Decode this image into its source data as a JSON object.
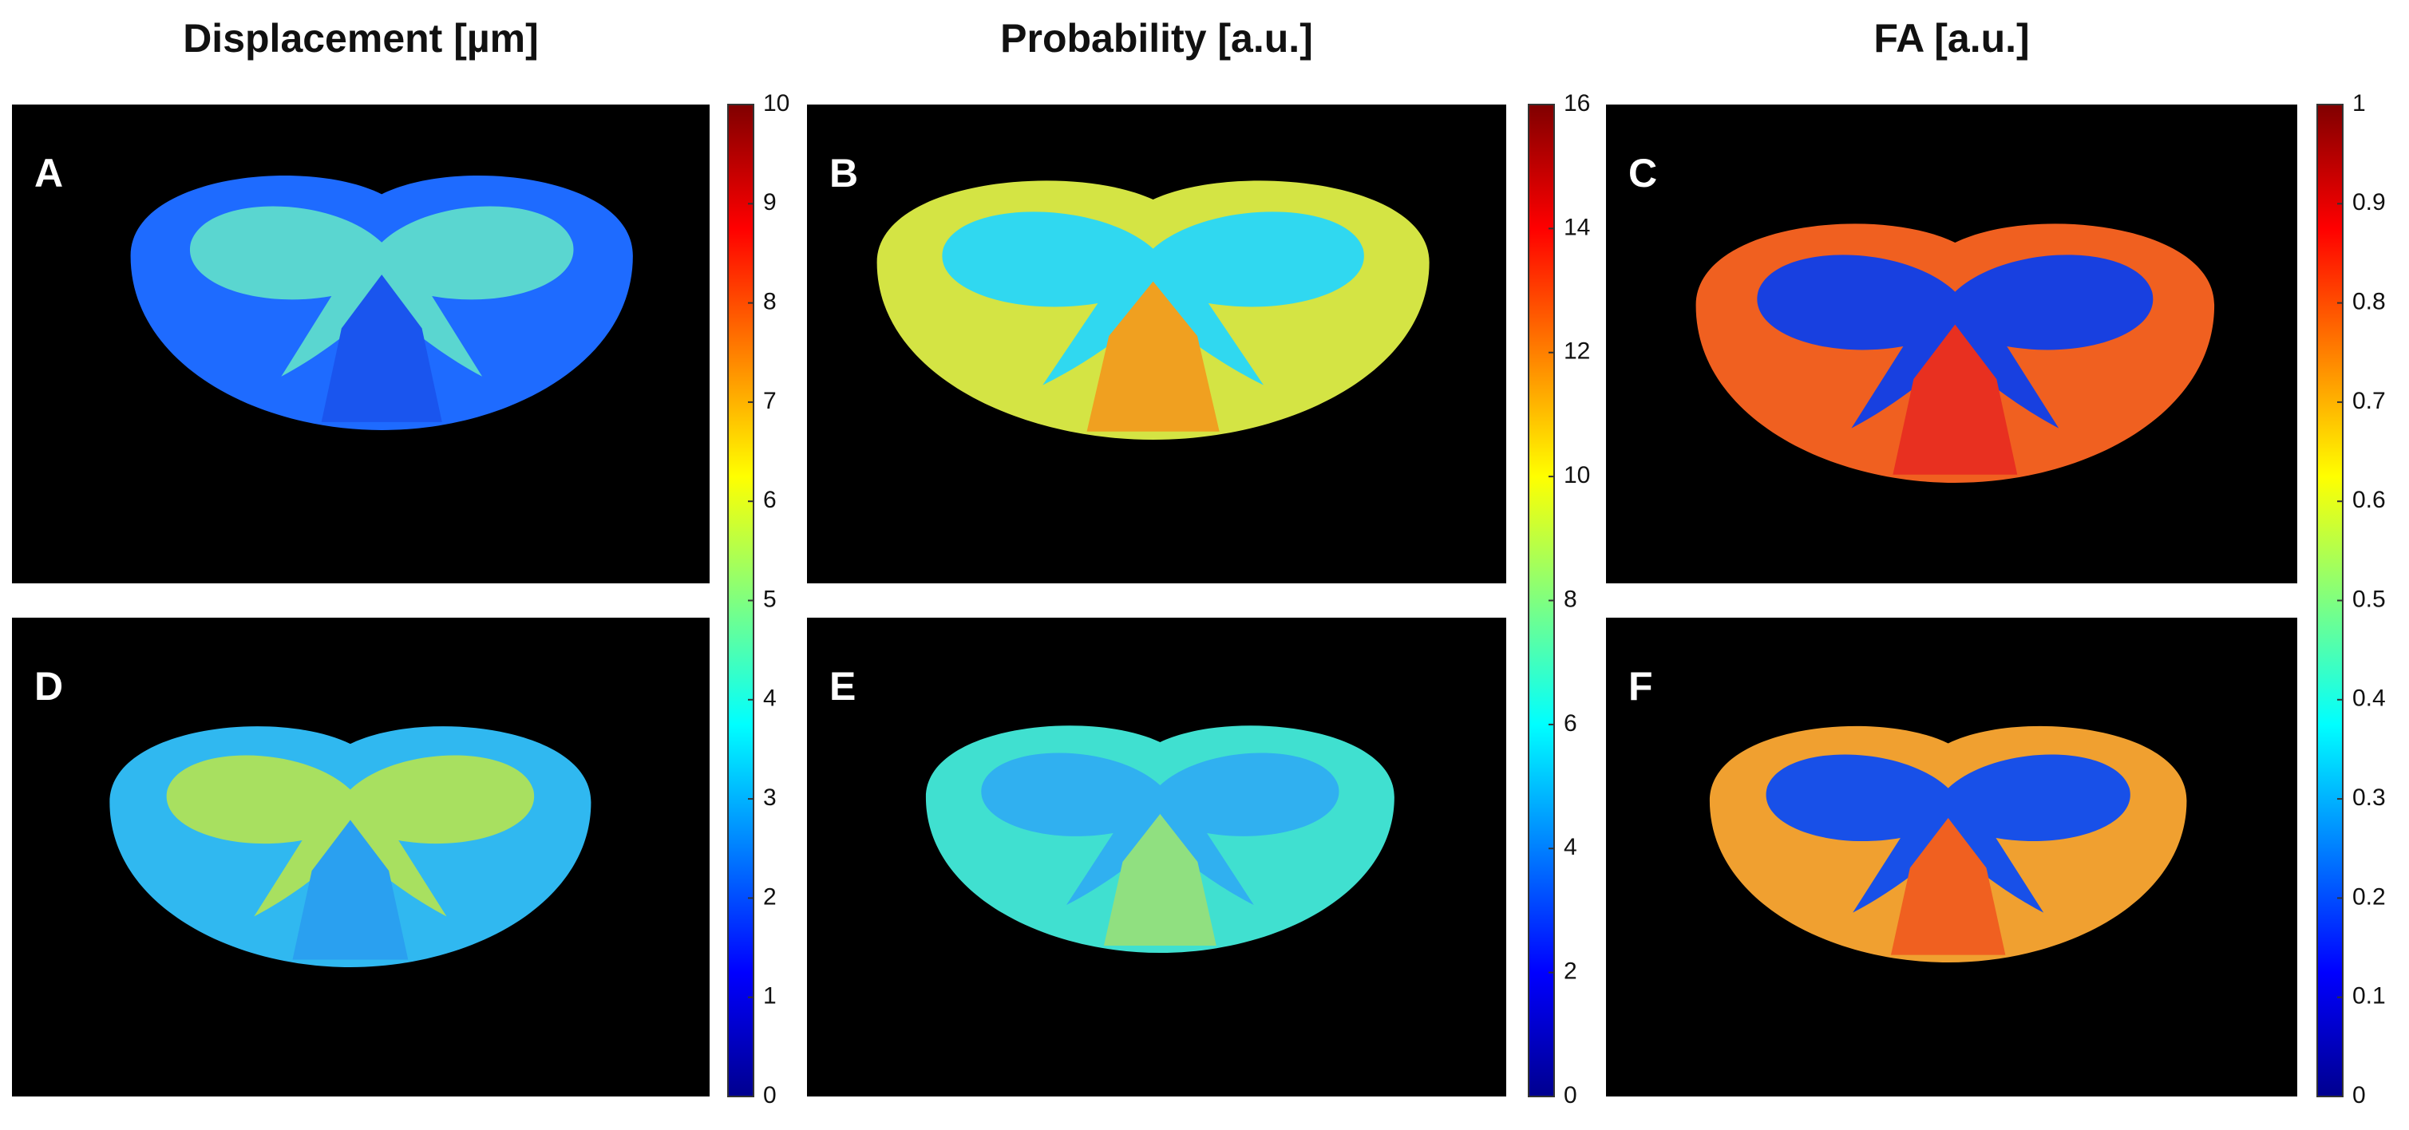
{
  "chart_data": [
    {
      "type": "heatmap",
      "title": "Displacement [µm]",
      "panels": [
        "A",
        "D"
      ],
      "colormap": "jet",
      "zlim": [
        0,
        10
      ],
      "zticks": [
        0,
        1,
        2,
        3,
        4,
        5,
        6,
        7,
        8,
        9,
        10
      ]
    },
    {
      "type": "heatmap",
      "title": "Probability [a.u.]",
      "panels": [
        "B",
        "E"
      ],
      "colormap": "jet",
      "zlim": [
        0,
        16
      ],
      "zticks": [
        0,
        2,
        4,
        6,
        8,
        10,
        12,
        14,
        16
      ]
    },
    {
      "type": "heatmap",
      "title": "FA [a.u.]",
      "panels": [
        "C",
        "F"
      ],
      "colormap": "jet",
      "zlim": [
        0,
        1
      ],
      "zticks": [
        0,
        0.1,
        0.2,
        0.3,
        0.4,
        0.5,
        0.6,
        0.7,
        0.8,
        0.9,
        1
      ]
    }
  ]
}
